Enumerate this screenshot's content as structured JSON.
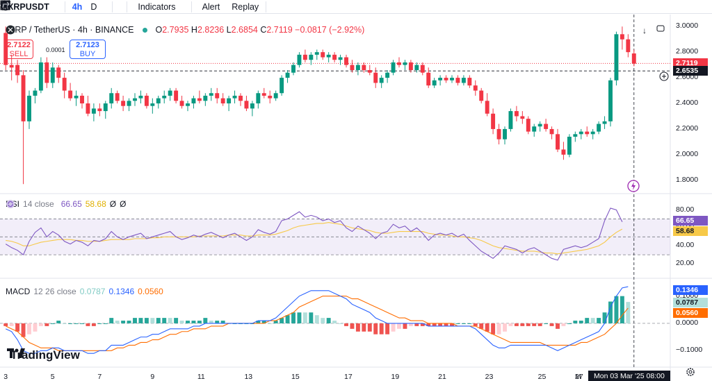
{
  "toolbar": {
    "symbol": "XRPUSDT",
    "interval_a": "4h",
    "interval_b": "D",
    "indicators": "Indicators",
    "alert": "Alert",
    "replay": "Replay"
  },
  "legend": {
    "title": "XRP / TetherUS · 4h · BINANCE",
    "o_label": "O",
    "o": "2.7935",
    "h_label": "H",
    "h": "2.8236",
    "l_label": "L",
    "l": "2.6854",
    "c_label": "C",
    "c": "2.7119",
    "change": "−0.0817 (−2.92%)"
  },
  "trade": {
    "sell_price": "2.7122",
    "sell_label": "SELL",
    "spread": "0.0001",
    "buy_price": "2.7123",
    "buy_label": "BUY"
  },
  "price_axis": {
    "ticks": [
      "3.0000",
      "2.8000",
      "2.6000",
      "2.4000",
      "2.2000",
      "2.0000",
      "1.8000"
    ],
    "last_price": "2.7119",
    "crosshair_price": "2.6535",
    "colors": {
      "last": "#f23645",
      "crosshair": "#131722"
    }
  },
  "rsi": {
    "label": "RSI",
    "params": "14 close",
    "value": "66.65",
    "ma": "58.68",
    "x1": "Ø",
    "x2": "Ø",
    "ticks": [
      "80.00",
      "60.00",
      "40.00",
      "20.00"
    ],
    "colors": {
      "rsi": "#7e57c2",
      "ma": "#f7c948"
    }
  },
  "macd": {
    "label": "MACD",
    "params": "12 26 close",
    "hist": "0.0787",
    "macd": "0.1346",
    "signal": "0.0560",
    "ticks": [
      "0.1000",
      "0.0000",
      "−0.1000"
    ],
    "colors": {
      "macd": "#2962ff",
      "signal": "#ff6d00",
      "hist_up": "#26a69a",
      "hist_down": "#ef5350"
    }
  },
  "date_axis": {
    "labels": [
      "3",
      "5",
      "7",
      "9",
      "11",
      "13",
      "15",
      "17",
      "19",
      "21",
      "23",
      "25",
      "27",
      "M"
    ],
    "crosshair_date": "Mon 03 Mar '25   08:00"
  },
  "branding": {
    "logo_text": "TradingView"
  },
  "chart_data": {
    "type": "candlestick",
    "x_label": "",
    "y_label": "",
    "ylim": [
      1.75,
      3.05
    ],
    "candles": [
      [
        2.95,
        3.0,
        2.66,
        2.7
      ],
      [
        2.7,
        2.78,
        2.58,
        2.68
      ],
      [
        2.7,
        2.74,
        2.56,
        2.62
      ],
      [
        2.62,
        2.66,
        1.77,
        2.26
      ],
      [
        2.26,
        2.5,
        2.2,
        2.46
      ],
      [
        2.46,
        2.52,
        2.4,
        2.5
      ],
      [
        2.5,
        2.76,
        2.48,
        2.72
      ],
      [
        2.72,
        2.76,
        2.52,
        2.56
      ],
      [
        2.56,
        2.72,
        2.52,
        2.68
      ],
      [
        2.68,
        2.7,
        2.56,
        2.6
      ],
      [
        2.6,
        2.64,
        2.44,
        2.5
      ],
      [
        2.5,
        2.56,
        2.42,
        2.44
      ],
      [
        2.44,
        2.5,
        2.38,
        2.46
      ],
      [
        2.46,
        2.48,
        2.36,
        2.4
      ],
      [
        2.4,
        2.46,
        2.3,
        2.32
      ],
      [
        2.32,
        2.4,
        2.26,
        2.36
      ],
      [
        2.36,
        2.4,
        2.3,
        2.34
      ],
      [
        2.34,
        2.42,
        2.28,
        2.4
      ],
      [
        2.4,
        2.52,
        2.36,
        2.48
      ],
      [
        2.48,
        2.5,
        2.4,
        2.42
      ],
      [
        2.42,
        2.46,
        2.34,
        2.38
      ],
      [
        2.38,
        2.44,
        2.34,
        2.42
      ],
      [
        2.42,
        2.48,
        2.38,
        2.44
      ],
      [
        2.44,
        2.5,
        2.4,
        2.46
      ],
      [
        2.46,
        2.48,
        2.36,
        2.38
      ],
      [
        2.38,
        2.44,
        2.32,
        2.4
      ],
      [
        2.4,
        2.46,
        2.36,
        2.44
      ],
      [
        2.44,
        2.5,
        2.4,
        2.46
      ],
      [
        2.46,
        2.52,
        2.42,
        2.5
      ],
      [
        2.5,
        2.52,
        2.4,
        2.42
      ],
      [
        2.42,
        2.46,
        2.36,
        2.38
      ],
      [
        2.38,
        2.42,
        2.34,
        2.4
      ],
      [
        2.4,
        2.46,
        2.36,
        2.44
      ],
      [
        2.44,
        2.5,
        2.4,
        2.42
      ],
      [
        2.42,
        2.48,
        2.38,
        2.46
      ],
      [
        2.46,
        2.52,
        2.42,
        2.48
      ],
      [
        2.48,
        2.52,
        2.4,
        2.44
      ],
      [
        2.44,
        2.48,
        2.38,
        2.4
      ],
      [
        2.4,
        2.46,
        2.34,
        2.44
      ],
      [
        2.44,
        2.5,
        2.4,
        2.46
      ],
      [
        2.46,
        2.48,
        2.38,
        2.42
      ],
      [
        2.42,
        2.46,
        2.34,
        2.36
      ],
      [
        2.36,
        2.42,
        2.3,
        2.4
      ],
      [
        2.4,
        2.5,
        2.36,
        2.48
      ],
      [
        2.48,
        2.52,
        2.44,
        2.46
      ],
      [
        2.46,
        2.5,
        2.4,
        2.44
      ],
      [
        2.44,
        2.5,
        2.42,
        2.48
      ],
      [
        2.48,
        2.62,
        2.46,
        2.6
      ],
      [
        2.6,
        2.66,
        2.56,
        2.64
      ],
      [
        2.64,
        2.72,
        2.62,
        2.7
      ],
      [
        2.7,
        2.8,
        2.68,
        2.78
      ],
      [
        2.78,
        2.82,
        2.72,
        2.74
      ],
      [
        2.74,
        2.8,
        2.7,
        2.78
      ],
      [
        2.78,
        2.82,
        2.74,
        2.8
      ],
      [
        2.8,
        2.82,
        2.74,
        2.76
      ],
      [
        2.76,
        2.8,
        2.72,
        2.78
      ],
      [
        2.78,
        2.8,
        2.72,
        2.74
      ],
      [
        2.74,
        2.78,
        2.7,
        2.76
      ],
      [
        2.76,
        2.78,
        2.68,
        2.7
      ],
      [
        2.7,
        2.74,
        2.64,
        2.66
      ],
      [
        2.66,
        2.72,
        2.62,
        2.7
      ],
      [
        2.7,
        2.72,
        2.64,
        2.66
      ],
      [
        2.66,
        2.7,
        2.62,
        2.64
      ],
      [
        2.64,
        2.68,
        2.52,
        2.56
      ],
      [
        2.56,
        2.62,
        2.52,
        2.6
      ],
      [
        2.6,
        2.66,
        2.56,
        2.64
      ],
      [
        2.64,
        2.74,
        2.62,
        2.72
      ],
      [
        2.72,
        2.76,
        2.68,
        2.7
      ],
      [
        2.7,
        2.74,
        2.66,
        2.72
      ],
      [
        2.72,
        2.74,
        2.64,
        2.66
      ],
      [
        2.66,
        2.72,
        2.64,
        2.7
      ],
      [
        2.7,
        2.72,
        2.62,
        2.64
      ],
      [
        2.64,
        2.68,
        2.52,
        2.54
      ],
      [
        2.54,
        2.6,
        2.52,
        2.58
      ],
      [
        2.58,
        2.62,
        2.54,
        2.6
      ],
      [
        2.6,
        2.62,
        2.56,
        2.58
      ],
      [
        2.58,
        2.62,
        2.56,
        2.6
      ],
      [
        2.6,
        2.62,
        2.54,
        2.56
      ],
      [
        2.56,
        2.62,
        2.54,
        2.6
      ],
      [
        2.6,
        2.62,
        2.52,
        2.54
      ],
      [
        2.54,
        2.58,
        2.46,
        2.5
      ],
      [
        2.5,
        2.52,
        2.4,
        2.42
      ],
      [
        2.42,
        2.48,
        2.3,
        2.32
      ],
      [
        2.32,
        2.36,
        2.16,
        2.2
      ],
      [
        2.2,
        2.24,
        2.08,
        2.12
      ],
      [
        2.12,
        2.22,
        2.08,
        2.2
      ],
      [
        2.2,
        2.36,
        2.18,
        2.34
      ],
      [
        2.34,
        2.38,
        2.26,
        2.3
      ],
      [
        2.3,
        2.34,
        2.24,
        2.28
      ],
      [
        2.28,
        2.3,
        2.16,
        2.18
      ],
      [
        2.18,
        2.24,
        2.14,
        2.22
      ],
      [
        2.22,
        2.26,
        2.18,
        2.24
      ],
      [
        2.24,
        2.28,
        2.18,
        2.2
      ],
      [
        2.2,
        2.22,
        2.12,
        2.16
      ],
      [
        2.16,
        2.2,
        2.02,
        2.04
      ],
      [
        2.04,
        2.1,
        1.96,
        2.0
      ],
      [
        2.0,
        2.16,
        1.98,
        2.14
      ],
      [
        2.14,
        2.18,
        2.1,
        2.16
      ],
      [
        2.16,
        2.2,
        2.12,
        2.18
      ],
      [
        2.18,
        2.22,
        2.14,
        2.16
      ],
      [
        2.16,
        2.2,
        2.12,
        2.18
      ],
      [
        2.18,
        2.26,
        2.16,
        2.24
      ],
      [
        2.24,
        2.3,
        2.2,
        2.26
      ],
      [
        2.26,
        2.6,
        2.22,
        2.58
      ],
      [
        2.58,
        2.96,
        2.54,
        2.94
      ],
      [
        2.94,
        3.0,
        2.82,
        2.9
      ],
      [
        2.9,
        2.94,
        2.76,
        2.8
      ],
      [
        2.79,
        2.82,
        2.69,
        2.71
      ]
    ],
    "rsi": [
      42,
      38,
      35,
      30,
      45,
      55,
      60,
      50,
      56,
      52,
      45,
      42,
      46,
      44,
      40,
      46,
      45,
      48,
      56,
      50,
      47,
      50,
      52,
      54,
      48,
      50,
      52,
      54,
      56,
      50,
      47,
      49,
      52,
      50,
      53,
      55,
      52,
      49,
      52,
      54,
      50,
      46,
      50,
      58,
      55,
      53,
      56,
      68,
      70,
      74,
      78,
      72,
      74,
      72,
      68,
      70,
      66,
      68,
      60,
      56,
      62,
      58,
      54,
      48,
      54,
      56,
      64,
      60,
      62,
      56,
      60,
      54,
      46,
      52,
      54,
      52,
      54,
      50,
      53,
      46,
      40,
      34,
      30,
      26,
      32,
      40,
      38,
      36,
      32,
      36,
      38,
      34,
      30,
      26,
      24,
      36,
      38,
      40,
      38,
      40,
      44,
      48,
      68,
      82,
      80,
      66.65
    ],
    "rsi_ma": [
      46,
      45,
      43,
      40,
      40,
      42,
      44,
      45,
      46,
      47,
      47,
      47,
      46,
      46,
      45,
      45,
      45,
      46,
      47,
      47,
      47,
      47,
      48,
      48,
      48,
      49,
      49,
      50,
      50,
      50,
      50,
      50,
      50,
      51,
      51,
      51,
      51,
      51,
      52,
      52,
      52,
      51,
      51,
      52,
      52,
      52,
      53,
      55,
      57,
      60,
      62,
      63,
      64,
      65,
      65,
      66,
      65,
      64,
      62,
      60,
      59,
      58,
      57,
      55,
      54,
      54,
      55,
      56,
      56,
      56,
      56,
      56,
      54,
      53,
      52,
      52,
      51,
      50,
      50,
      49,
      48,
      46,
      43,
      40,
      38,
      37,
      36,
      35,
      34,
      34,
      34,
      33,
      32,
      32,
      31,
      32,
      33,
      34,
      35,
      36,
      38,
      40,
      44,
      50,
      55,
      58.68
    ],
    "macd_line": [
      -0.02,
      -0.03,
      -0.06,
      -0.1,
      -0.11,
      -0.11,
      -0.1,
      -0.1,
      -0.09,
      -0.09,
      -0.1,
      -0.1,
      -0.1,
      -0.1,
      -0.11,
      -0.11,
      -0.1,
      -0.1,
      -0.08,
      -0.08,
      -0.08,
      -0.07,
      -0.06,
      -0.05,
      -0.05,
      -0.04,
      -0.04,
      -0.03,
      -0.02,
      -0.02,
      -0.02,
      -0.02,
      -0.01,
      -0.01,
      0.0,
      0.0,
      0.0,
      0.0,
      0.0,
      0.0,
      0.0,
      0.0,
      0.0,
      0.01,
      0.01,
      0.01,
      0.02,
      0.04,
      0.06,
      0.08,
      0.1,
      0.11,
      0.12,
      0.12,
      0.12,
      0.12,
      0.11,
      0.1,
      0.09,
      0.07,
      0.06,
      0.05,
      0.04,
      0.02,
      0.01,
      0.0,
      0.0,
      0.0,
      0.0,
      0.0,
      0.0,
      0.0,
      -0.01,
      -0.01,
      -0.01,
      -0.01,
      -0.01,
      -0.01,
      -0.01,
      -0.01,
      -0.02,
      -0.04,
      -0.06,
      -0.08,
      -0.09,
      -0.09,
      -0.08,
      -0.08,
      -0.08,
      -0.08,
      -0.08,
      -0.08,
      -0.08,
      -0.09,
      -0.1,
      -0.09,
      -0.08,
      -0.07,
      -0.06,
      -0.05,
      -0.04,
      -0.03,
      0.0,
      0.06,
      0.1,
      0.13,
      0.1346
    ],
    "signal_line": [
      -0.01,
      -0.02,
      -0.03,
      -0.05,
      -0.07,
      -0.08,
      -0.09,
      -0.09,
      -0.09,
      -0.1,
      -0.1,
      -0.1,
      -0.1,
      -0.1,
      -0.1,
      -0.1,
      -0.1,
      -0.1,
      -0.1,
      -0.09,
      -0.09,
      -0.08,
      -0.08,
      -0.07,
      -0.07,
      -0.06,
      -0.06,
      -0.05,
      -0.04,
      -0.04,
      -0.03,
      -0.03,
      -0.02,
      -0.02,
      -0.02,
      -0.01,
      -0.01,
      -0.01,
      0.0,
      0.0,
      0.0,
      0.0,
      0.0,
      0.0,
      0.0,
      0.01,
      0.01,
      0.02,
      0.03,
      0.04,
      0.06,
      0.07,
      0.08,
      0.09,
      0.1,
      0.1,
      0.1,
      0.1,
      0.1,
      0.09,
      0.09,
      0.08,
      0.07,
      0.06,
      0.05,
      0.04,
      0.03,
      0.02,
      0.02,
      0.01,
      0.01,
      0.01,
      0.0,
      0.0,
      0.0,
      0.0,
      0.0,
      -0.01,
      -0.01,
      -0.01,
      -0.01,
      -0.02,
      -0.03,
      -0.04,
      -0.05,
      -0.06,
      -0.07,
      -0.07,
      -0.07,
      -0.07,
      -0.07,
      -0.07,
      -0.08,
      -0.08,
      -0.08,
      -0.08,
      -0.08,
      -0.08,
      -0.07,
      -0.07,
      -0.06,
      -0.05,
      -0.04,
      -0.02,
      0.0,
      0.03,
      0.056
    ]
  }
}
